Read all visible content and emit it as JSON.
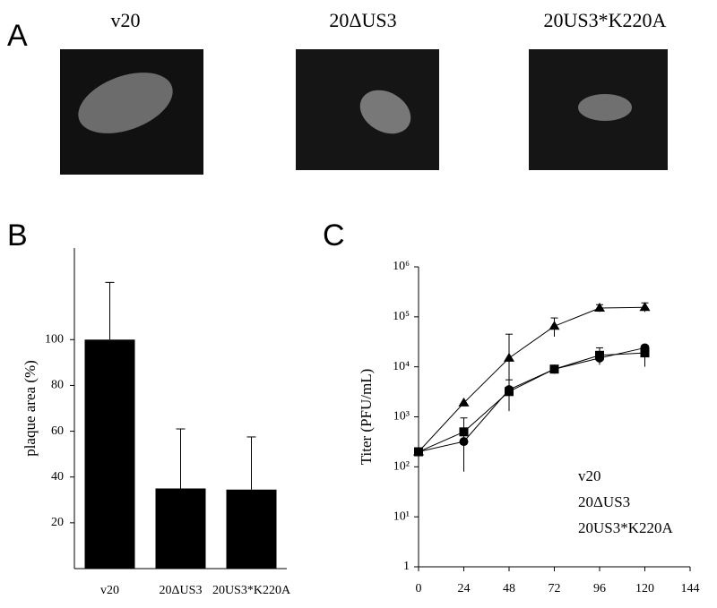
{
  "panel_labels": [
    "A",
    "B",
    "C"
  ],
  "images": {
    "labels": [
      "v20",
      "20ΔUS3",
      "20US3*K220A"
    ]
  },
  "chart_data": [
    {
      "type": "bar",
      "ylabel": "plaque area (%)",
      "categories": [
        "v20",
        "20ΔUS3",
        "20US3*K220A"
      ],
      "values": [
        100,
        35,
        34.5
      ],
      "errors": [
        25,
        26,
        23
      ],
      "color": "#000000",
      "ylim": [
        0,
        140
      ],
      "yticks": [
        20,
        40,
        60,
        80,
        100
      ]
    },
    {
      "type": "line",
      "ylabel": "Titer (PFU/mL)",
      "log_y": true,
      "x": [
        0,
        24,
        48,
        72,
        96,
        120
      ],
      "series": [
        {
          "name": "v20",
          "color": "#000000",
          "marker": "triangle",
          "values": [
            200,
            1900,
            15000,
            65000,
            150000,
            155000
          ],
          "lower": [
            null,
            null,
            4000,
            40000,
            125000,
            125000
          ],
          "upper": [
            null,
            null,
            45000,
            95000,
            175000,
            190000
          ]
        },
        {
          "name": "20ΔUS3",
          "color": "#000000",
          "marker": "square",
          "values": [
            200,
            500,
            3200,
            9000,
            17000,
            19000
          ],
          "lower": [
            null,
            80,
            1300,
            null,
            11000,
            10000
          ],
          "upper": [
            null,
            950,
            5500,
            null,
            24000,
            27000
          ]
        },
        {
          "name": "20US3*K220A",
          "color": "#000000",
          "marker": "circle",
          "values": [
            200,
            320,
            3500,
            9000,
            15000,
            24000
          ],
          "lower": [
            null,
            null,
            null,
            null,
            null,
            null
          ],
          "upper": [
            null,
            null,
            null,
            null,
            null,
            null
          ]
        }
      ],
      "xlim": [
        0,
        144
      ],
      "xticks": [
        0,
        24,
        48,
        72,
        96,
        120,
        144
      ],
      "ylim": [
        1,
        1000000
      ],
      "yticks": [
        1,
        {
          "value": 10,
          "label": "10¹"
        },
        {
          "value": 100,
          "label": "10²"
        },
        {
          "value": 1000,
          "label": "10³"
        },
        {
          "value": 10000,
          "label": "10⁴"
        },
        {
          "value": 100000,
          "label": "10⁵"
        },
        {
          "value": 1000000,
          "label": "10⁶"
        }
      ]
    }
  ]
}
